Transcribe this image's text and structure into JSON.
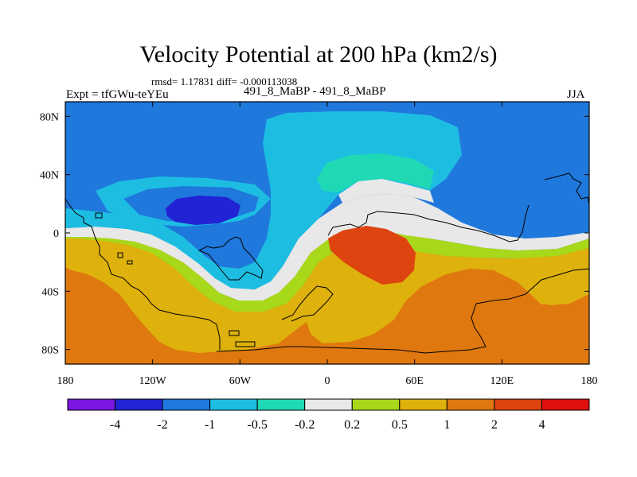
{
  "chart_data": {
    "type": "heatmap",
    "title": "Velocity Potential at 200 hPa (km2/s)",
    "stats_label": "rmsd= 1.17831 diff= -0.000113038",
    "left_label": "Expt = tfGWu-teYEu",
    "center_label": "491_8_MaBP - 491_8_MaBP",
    "right_label": "JJA",
    "xlabel": "",
    "ylabel": "",
    "x_range": [
      -180,
      180
    ],
    "y_range": [
      -90,
      90
    ],
    "x_ticks": [
      {
        "value": -180,
        "label": "180"
      },
      {
        "value": -120,
        "label": "120W"
      },
      {
        "value": -60,
        "label": "60W"
      },
      {
        "value": 0,
        "label": "0"
      },
      {
        "value": 60,
        "label": "60E"
      },
      {
        "value": 120,
        "label": "120E"
      },
      {
        "value": 180,
        "label": "180"
      }
    ],
    "y_ticks": [
      {
        "value": 80,
        "label": "80N"
      },
      {
        "value": 40,
        "label": "40N"
      },
      {
        "value": 0,
        "label": "0"
      },
      {
        "value": -40,
        "label": "40S"
      },
      {
        "value": -80,
        "label": "80S"
      }
    ],
    "contour_levels": [
      "-4",
      "-2",
      "-1",
      "-0.5",
      "-0.2",
      "0.2",
      "0.5",
      "1",
      "2",
      "4"
    ],
    "colorbar_colors": [
      "#7a17e0",
      "#2323d6",
      "#1f78dc",
      "#1dbde2",
      "#1fd9b5",
      "#e8e8e8",
      "#a8d81a",
      "#deb10c",
      "#df780f",
      "#de4410",
      "#df1010"
    ],
    "field_regions": [
      {
        "name": "tropical-positive",
        "bin": 8,
        "points": [
          [
            -20,
            -10
          ],
          [
            10,
            -5
          ],
          [
            40,
            -5
          ],
          [
            60,
            -10
          ],
          [
            55,
            -35
          ],
          [
            35,
            -40
          ],
          [
            15,
            -40
          ],
          [
            -5,
            -35
          ],
          [
            -20,
            -25
          ]
        ]
      },
      {
        "name": "north-atlantic-strong-negative",
        "bin": 1,
        "points": [
          [
            -130,
            20
          ],
          [
            -110,
            26
          ],
          [
            -95,
            24
          ],
          [
            -90,
            16
          ],
          [
            -110,
            9
          ],
          [
            -125,
            12
          ]
        ]
      },
      {
        "name": "pacific-positive-1",
        "bin": 8,
        "points": [
          [
            -180,
            -60
          ],
          [
            -160,
            -15
          ],
          [
            -140,
            -15
          ],
          [
            -115,
            -25
          ],
          [
            -100,
            -45
          ],
          [
            -60,
            -55
          ],
          [
            -35,
            -40
          ],
          [
            -35,
            -60
          ],
          [
            -75,
            -72
          ],
          [
            -130,
            -78
          ],
          [
            -180,
            -75
          ]
        ]
      },
      {
        "name": "south-positive-2",
        "bin": 8,
        "points": [
          [
            95,
            -50
          ],
          [
            135,
            -70
          ],
          [
            180,
            -80
          ],
          [
            180,
            -90
          ],
          [
            95,
            -90
          ],
          [
            60,
            -85
          ],
          [
            40,
            -65
          ],
          [
            60,
            -55
          ]
        ]
      }
    ],
    "coastlines": [
      {
        "name": "africa-coastline",
        "points": [
          [
            0,
            0
          ],
          [
            -15,
            4
          ],
          [
            -15,
            -8
          ],
          [
            -8,
            -15
          ],
          [
            0,
            -10
          ],
          [
            15,
            0
          ],
          [
            30,
            -3
          ],
          [
            50,
            -8
          ],
          [
            55,
            -20
          ],
          [
            45,
            -35
          ],
          [
            35,
            -45
          ],
          [
            20,
            -50
          ],
          [
            10,
            -40
          ],
          [
            5,
            -20
          ],
          [
            0,
            0
          ]
        ]
      },
      {
        "name": "south-america-coastline",
        "points": [
          [
            -80,
            0
          ],
          [
            -72,
            5
          ],
          [
            -50,
            3
          ],
          [
            -35,
            -8
          ],
          [
            -40,
            -25
          ],
          [
            -50,
            -40
          ],
          [
            -65,
            -55
          ],
          [
            -75,
            -50
          ],
          [
            -78,
            -20
          ]
        ]
      },
      {
        "name": "antarctica-coastline",
        "points": [
          [
            -180,
            -65
          ],
          [
            -120,
            -70
          ],
          [
            -70,
            -72
          ],
          [
            -60,
            -65
          ],
          [
            0,
            -68
          ],
          [
            60,
            -67
          ],
          [
            120,
            -68
          ],
          [
            180,
            -66
          ]
        ]
      },
      {
        "name": "australia-coastline",
        "points": [
          [
            115,
            -20
          ],
          [
            130,
            -12
          ],
          [
            145,
            -10
          ],
          [
            155,
            -25
          ],
          [
            150,
            -38
          ],
          [
            135,
            -35
          ],
          [
            115,
            -32
          ]
        ]
      }
    ]
  }
}
